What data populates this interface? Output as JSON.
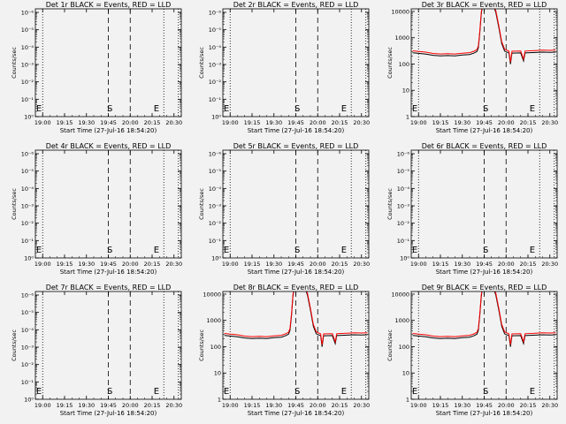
{
  "chart_data": {
    "type": "line",
    "y_scale": "log",
    "ylabel": "Counts/sec",
    "xlabel": "Start Time (27-Jul-16 18:54:20)",
    "x_ticks": [
      "19:00",
      "19:15",
      "19:30",
      "19:45",
      "20:00",
      "20:15",
      "20:30"
    ],
    "x_tick_minutes": [
      0,
      15,
      30,
      45,
      60,
      75,
      90
    ],
    "x_range_minutes": [
      -5,
      95
    ],
    "dotted_lines_minutes": [
      0,
      83,
      93
    ],
    "dashed_lines_minutes": [
      45,
      60
    ],
    "marker_S_minute": 46,
    "marker_E_minute": 78,
    "series_styles": [
      {
        "name": "Events",
        "color": "#000000"
      },
      {
        "name": "LLD",
        "color": "#ff0000"
      }
    ],
    "panels": [
      {
        "title": "Det 1r BLACK = Events, RED = LLD",
        "y_ticks": [
          "10⁰",
          "10⁻¹",
          "10⁻²",
          "10⁻³",
          "10⁻⁴",
          "10⁻⁵",
          "10⁻⁶"
        ],
        "has_data": false
      },
      {
        "title": "Det 2r BLACK = Events, RED = LLD",
        "y_ticks": [
          "10⁰",
          "10⁻¹",
          "10⁻²",
          "10⁻³",
          "10⁻⁴",
          "10⁻⁵",
          "10⁻⁶"
        ],
        "has_data": false
      },
      {
        "title": "Det 3r BLACK = Events, RED = LLD",
        "y_ticks": [
          "1",
          "10",
          "100",
          "1000",
          "10000"
        ],
        "has_data": true,
        "y_range_decades": [
          0,
          4.1
        ],
        "red_peak_log": 4.3
      },
      {
        "title": "Det 4r BLACK = Events, RED = LLD",
        "y_ticks": [
          "10⁰",
          "10⁻¹",
          "10⁻²",
          "10⁻³",
          "10⁻⁴",
          "10⁻⁵",
          "10⁻⁶"
        ],
        "has_data": false
      },
      {
        "title": "Det 5r BLACK = Events, RED = LLD",
        "y_ticks": [
          "10⁰",
          "10⁻¹",
          "10⁻²",
          "10⁻³",
          "10⁻⁴",
          "10⁻⁵",
          "10⁻⁶"
        ],
        "has_data": false
      },
      {
        "title": "Det 6r BLACK = Events, RED = LLD",
        "y_ticks": [
          "10⁰",
          "10⁻¹",
          "10⁻²",
          "10⁻³",
          "10⁻⁴",
          "10⁻⁵",
          "10⁻⁶"
        ],
        "has_data": false
      },
      {
        "title": "Det 7r BLACK = Events, RED = LLD",
        "y_ticks": [
          "10⁰",
          "10⁻¹",
          "10⁻²",
          "10⁻³",
          "10⁻⁴",
          "10⁻⁵",
          "10⁻⁶"
        ],
        "has_data": false
      },
      {
        "title": "Det 8r BLACK = Events, RED = LLD",
        "y_ticks": [
          "1",
          "10",
          "100",
          "1000",
          "10000"
        ],
        "has_data": true,
        "y_range_decades": [
          0,
          4.1
        ],
        "red_peak_log": 4.3
      },
      {
        "title": "Det 9r BLACK = Events, RED = LLD",
        "y_ticks": [
          "1",
          "10",
          "100",
          "1000",
          "10000"
        ],
        "has_data": true,
        "y_range_decades": [
          0,
          4.1
        ],
        "red_peak_log": 4.3
      }
    ],
    "events_profile": [
      {
        "t": -4,
        "v": 270
      },
      {
        "t": 0,
        "v": 255
      },
      {
        "t": 5,
        "v": 240
      },
      {
        "t": 10,
        "v": 215
      },
      {
        "t": 15,
        "v": 205
      },
      {
        "t": 20,
        "v": 210
      },
      {
        "t": 25,
        "v": 205
      },
      {
        "t": 30,
        "v": 220
      },
      {
        "t": 35,
        "v": 230
      },
      {
        "t": 38,
        "v": 260
      },
      {
        "t": 40,
        "v": 300
      },
      {
        "t": 41,
        "v": 420
      },
      {
        "t": 42,
        "v": 1500
      },
      {
        "t": 43,
        "v": 8000
      },
      {
        "t": 44,
        "v": 20000
      },
      {
        "t": 51,
        "v": 20000
      },
      {
        "t": 53,
        "v": 9000
      },
      {
        "t": 55,
        "v": 2500
      },
      {
        "t": 57,
        "v": 600
      },
      {
        "t": 59,
        "v": 310
      },
      {
        "t": 62,
        "v": 260
      },
      {
        "t": 63,
        "v": 100
      },
      {
        "t": 64,
        "v": 260
      },
      {
        "t": 70,
        "v": 265
      },
      {
        "t": 72,
        "v": 130
      },
      {
        "t": 73,
        "v": 265
      },
      {
        "t": 80,
        "v": 275
      },
      {
        "t": 85,
        "v": 285
      },
      {
        "t": 90,
        "v": 280
      },
      {
        "t": 94,
        "v": 285
      }
    ],
    "lld_ratio": 1.18
  }
}
